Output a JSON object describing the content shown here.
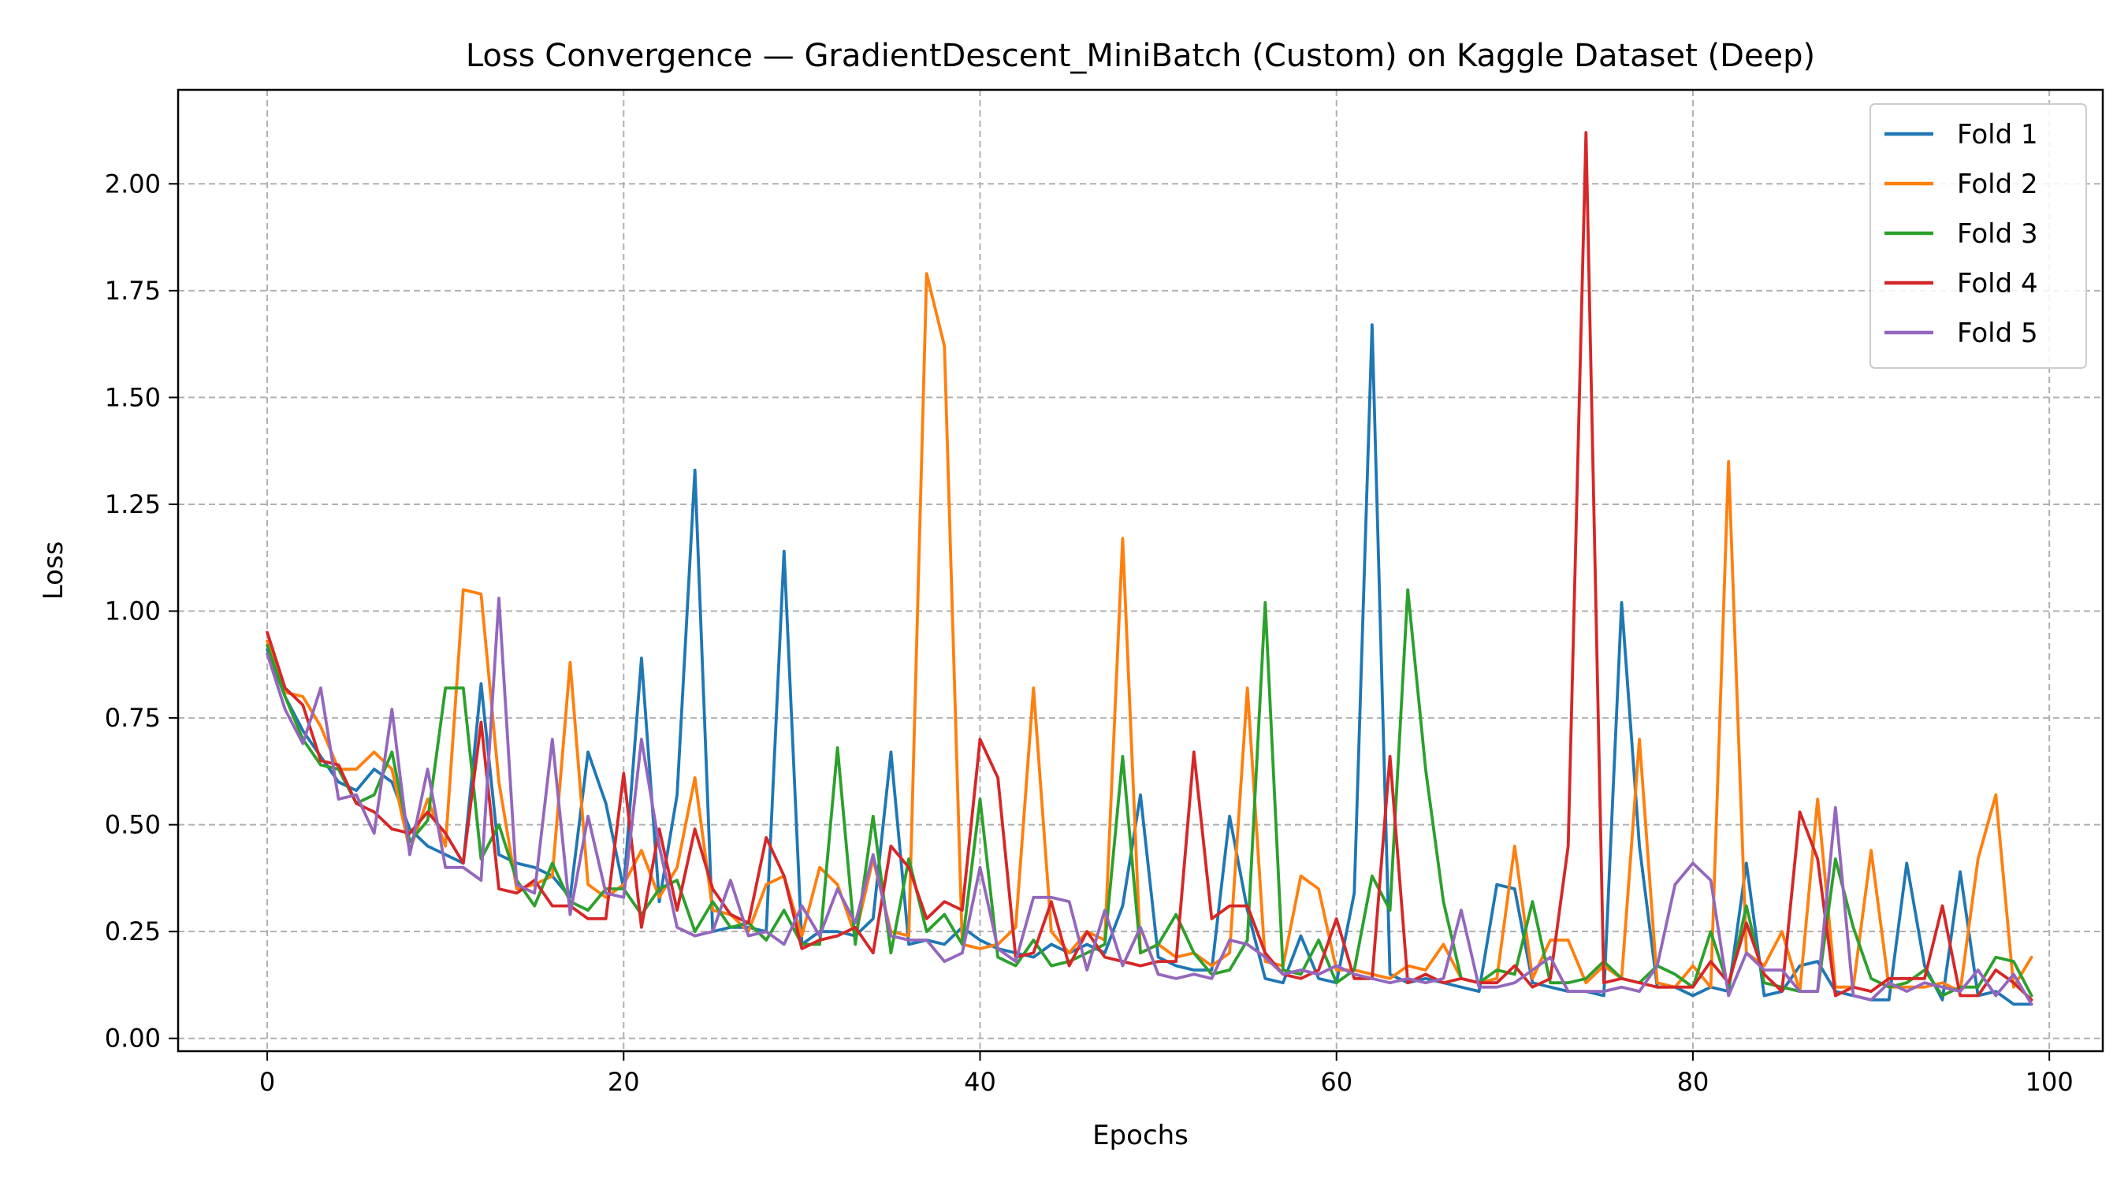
{
  "chart_data": {
    "type": "line",
    "title": "Loss Convergence — GradientDescent_MiniBatch (Custom) on Kaggle Dataset (Deep)",
    "xlabel": "Epochs",
    "ylabel": "Loss",
    "xlim": [
      -5,
      103
    ],
    "ylim": [
      -0.03,
      2.22
    ],
    "xticks": [
      0,
      20,
      40,
      60,
      80,
      100
    ],
    "yticks": [
      0.0,
      0.25,
      0.5,
      0.75,
      1.0,
      1.25,
      1.5,
      1.75,
      2.0
    ],
    "xtick_labels": [
      "0",
      "20",
      "40",
      "60",
      "80",
      "100"
    ],
    "ytick_labels": [
      "0.00",
      "0.25",
      "0.50",
      "0.75",
      "1.00",
      "1.25",
      "1.50",
      "1.75",
      "2.00"
    ],
    "grid": true,
    "legend_position": "top-right",
    "series": [
      {
        "name": "Fold 1",
        "color": "#1f77b4",
        "values": [
          0.91,
          0.8,
          0.72,
          0.66,
          0.6,
          0.58,
          0.63,
          0.6,
          0.49,
          0.45,
          0.43,
          0.41,
          0.83,
          0.43,
          0.41,
          0.4,
          0.38,
          0.33,
          0.67,
          0.55,
          0.35,
          0.89,
          0.32,
          0.57,
          1.33,
          0.25,
          0.26,
          0.26,
          0.25,
          1.14,
          0.22,
          0.25,
          0.25,
          0.24,
          0.28,
          0.67,
          0.22,
          0.23,
          0.22,
          0.26,
          0.23,
          0.21,
          0.2,
          0.19,
          0.22,
          0.2,
          0.22,
          0.2,
          0.31,
          0.57,
          0.19,
          0.17,
          0.16,
          0.16,
          0.52,
          0.3,
          0.14,
          0.13,
          0.24,
          0.14,
          0.13,
          0.34,
          1.67,
          0.15,
          0.13,
          0.14,
          0.13,
          0.12,
          0.11,
          0.36,
          0.35,
          0.13,
          0.12,
          0.11,
          0.11,
          0.1,
          1.02,
          0.45,
          0.12,
          0.12,
          0.1,
          0.12,
          0.11,
          0.41,
          0.1,
          0.11,
          0.17,
          0.18,
          0.11,
          0.1,
          0.09,
          0.09,
          0.41,
          0.17,
          0.09,
          0.39,
          0.1,
          0.11,
          0.08,
          0.08
        ]
      },
      {
        "name": "Fold 2",
        "color": "#ff7f0e",
        "values": [
          0.93,
          0.81,
          0.8,
          0.73,
          0.63,
          0.63,
          0.67,
          0.63,
          0.44,
          0.56,
          0.45,
          1.05,
          1.04,
          0.6,
          0.35,
          0.36,
          0.38,
          0.88,
          0.36,
          0.33,
          0.36,
          0.44,
          0.33,
          0.4,
          0.61,
          0.3,
          0.29,
          0.25,
          0.36,
          0.38,
          0.24,
          0.4,
          0.36,
          0.24,
          0.42,
          0.25,
          0.24,
          1.79,
          1.62,
          0.22,
          0.21,
          0.22,
          0.26,
          0.82,
          0.25,
          0.2,
          0.25,
          0.23,
          1.17,
          0.2,
          0.22,
          0.19,
          0.2,
          0.17,
          0.2,
          0.82,
          0.18,
          0.17,
          0.38,
          0.35,
          0.16,
          0.16,
          0.15,
          0.14,
          0.17,
          0.16,
          0.22,
          0.14,
          0.13,
          0.14,
          0.45,
          0.14,
          0.23,
          0.23,
          0.13,
          0.17,
          0.14,
          0.7,
          0.13,
          0.12,
          0.17,
          0.12,
          1.35,
          0.2,
          0.17,
          0.25,
          0.11,
          0.56,
          0.12,
          0.12,
          0.44,
          0.12,
          0.12,
          0.12,
          0.13,
          0.11,
          0.42,
          0.57,
          0.12,
          0.19
        ]
      },
      {
        "name": "Fold 3",
        "color": "#2ca02c",
        "values": [
          0.92,
          0.8,
          0.7,
          0.64,
          0.63,
          0.55,
          0.57,
          0.67,
          0.46,
          0.51,
          0.82,
          0.82,
          0.42,
          0.5,
          0.37,
          0.31,
          0.41,
          0.32,
          0.3,
          0.35,
          0.35,
          0.29,
          0.35,
          0.37,
          0.25,
          0.32,
          0.26,
          0.27,
          0.23,
          0.3,
          0.22,
          0.22,
          0.68,
          0.22,
          0.52,
          0.2,
          0.42,
          0.25,
          0.29,
          0.22,
          0.56,
          0.19,
          0.17,
          0.23,
          0.17,
          0.18,
          0.2,
          0.22,
          0.66,
          0.2,
          0.22,
          0.29,
          0.2,
          0.15,
          0.16,
          0.23,
          1.02,
          0.16,
          0.15,
          0.23,
          0.13,
          0.16,
          0.38,
          0.3,
          1.05,
          0.63,
          0.32,
          0.14,
          0.13,
          0.16,
          0.15,
          0.32,
          0.13,
          0.13,
          0.14,
          0.18,
          0.14,
          0.13,
          0.17,
          0.15,
          0.12,
          0.25,
          0.12,
          0.31,
          0.13,
          0.12,
          0.11,
          0.11,
          0.42,
          0.26,
          0.14,
          0.12,
          0.13,
          0.16,
          0.1,
          0.12,
          0.12,
          0.19,
          0.18,
          0.1
        ]
      },
      {
        "name": "Fold 4",
        "color": "#d62728",
        "values": [
          0.95,
          0.82,
          0.78,
          0.65,
          0.64,
          0.55,
          0.53,
          0.49,
          0.48,
          0.53,
          0.48,
          0.41,
          0.74,
          0.35,
          0.34,
          0.37,
          0.31,
          0.31,
          0.28,
          0.28,
          0.62,
          0.26,
          0.49,
          0.3,
          0.49,
          0.35,
          0.29,
          0.27,
          0.47,
          0.38,
          0.21,
          0.23,
          0.24,
          0.26,
          0.2,
          0.45,
          0.4,
          0.28,
          0.32,
          0.3,
          0.7,
          0.61,
          0.19,
          0.2,
          0.32,
          0.17,
          0.25,
          0.19,
          0.18,
          0.17,
          0.18,
          0.18,
          0.67,
          0.28,
          0.31,
          0.31,
          0.2,
          0.15,
          0.14,
          0.16,
          0.28,
          0.14,
          0.14,
          0.66,
          0.13,
          0.15,
          0.13,
          0.14,
          0.13,
          0.13,
          0.17,
          0.12,
          0.14,
          0.45,
          2.12,
          0.13,
          0.14,
          0.13,
          0.12,
          0.12,
          0.12,
          0.18,
          0.13,
          0.27,
          0.15,
          0.11,
          0.53,
          0.42,
          0.1,
          0.12,
          0.11,
          0.14,
          0.14,
          0.14,
          0.31,
          0.1,
          0.1,
          0.16,
          0.13,
          0.09
        ]
      },
      {
        "name": "Fold 5",
        "color": "#9467bd",
        "values": [
          0.9,
          0.77,
          0.69,
          0.82,
          0.56,
          0.57,
          0.48,
          0.77,
          0.43,
          0.63,
          0.4,
          0.4,
          0.37,
          1.03,
          0.36,
          0.34,
          0.7,
          0.29,
          0.52,
          0.34,
          0.33,
          0.7,
          0.45,
          0.26,
          0.24,
          0.25,
          0.37,
          0.24,
          0.25,
          0.22,
          0.31,
          0.24,
          0.35,
          0.27,
          0.43,
          0.24,
          0.23,
          0.23,
          0.18,
          0.2,
          0.4,
          0.21,
          0.18,
          0.33,
          0.33,
          0.32,
          0.16,
          0.3,
          0.17,
          0.26,
          0.15,
          0.14,
          0.15,
          0.14,
          0.23,
          0.22,
          0.19,
          0.15,
          0.16,
          0.15,
          0.17,
          0.15,
          0.14,
          0.13,
          0.14,
          0.13,
          0.14,
          0.3,
          0.12,
          0.12,
          0.13,
          0.16,
          0.19,
          0.11,
          0.11,
          0.11,
          0.12,
          0.11,
          0.17,
          0.36,
          0.41,
          0.37,
          0.1,
          0.2,
          0.16,
          0.16,
          0.11,
          0.11,
          0.54,
          0.1,
          0.09,
          0.13,
          0.11,
          0.13,
          0.12,
          0.11,
          0.16,
          0.1,
          0.15,
          0.08
        ]
      }
    ]
  }
}
